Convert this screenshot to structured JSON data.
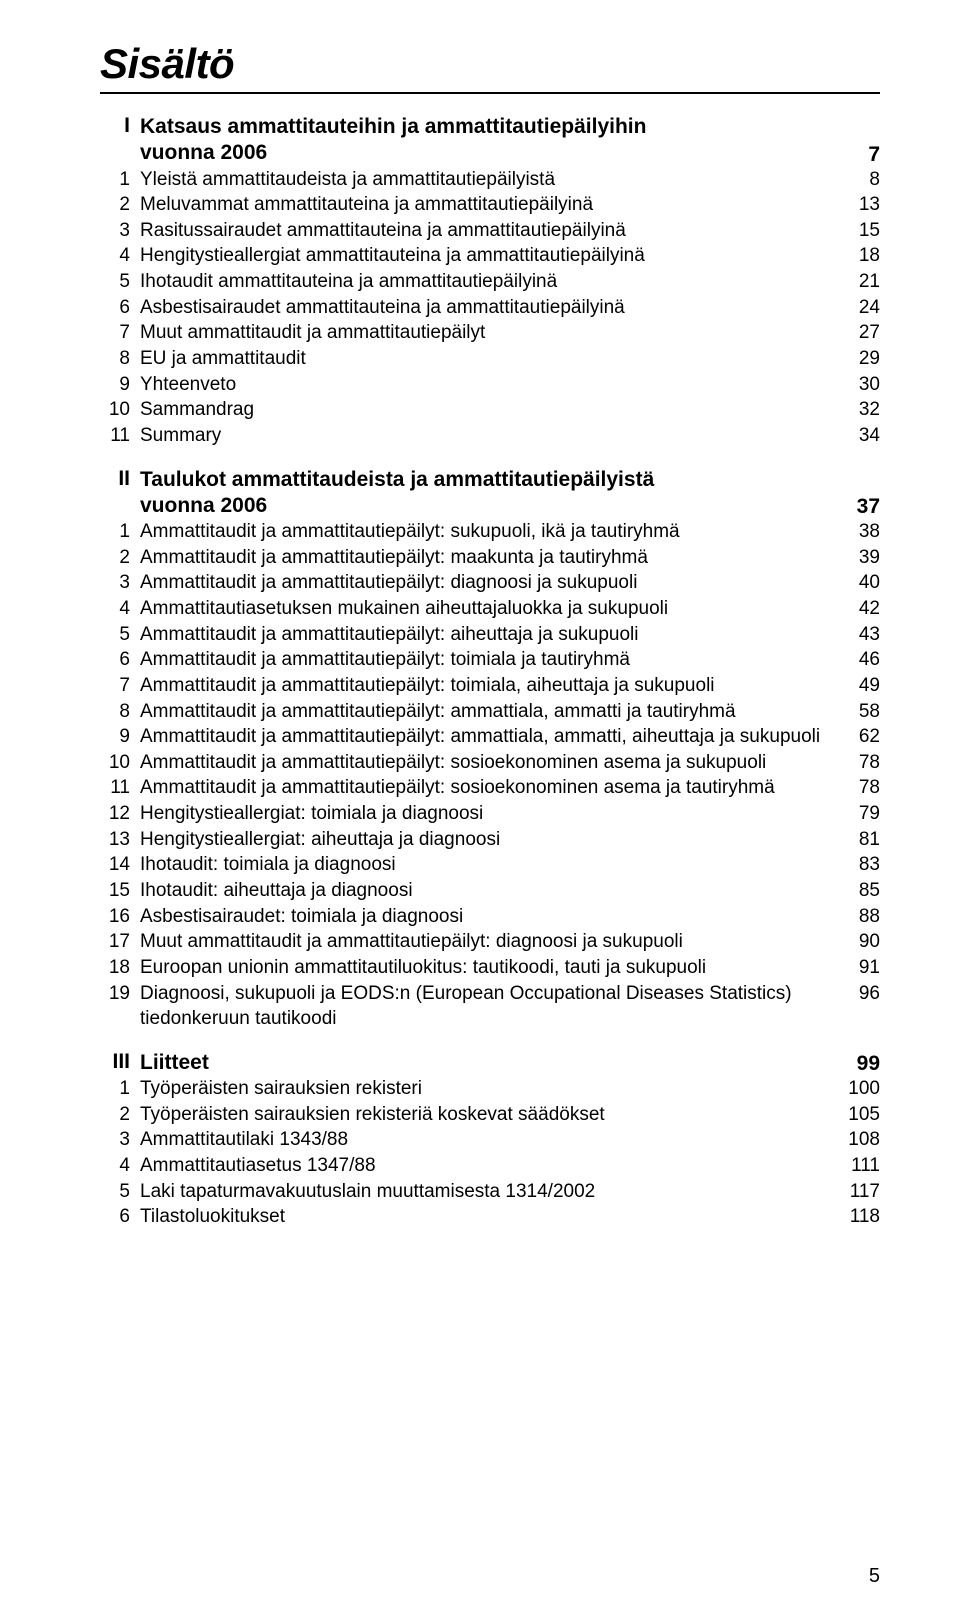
{
  "title": "Sisältö",
  "page_number": "5",
  "sections": [
    {
      "num": "I",
      "heading_lines": [
        "Katsaus ammattitauteihin ja ammattitautiepäilyihin",
        "vuonna 2006"
      ],
      "heading_page": "7",
      "items": [
        {
          "num": "1",
          "text": "Yleistä ammattitaudeista ja ammattitautiepäilyistä",
          "page": "8"
        },
        {
          "num": "2",
          "text": "Meluvammat ammattitauteina ja ammattitautiepäilyinä",
          "page": "13"
        },
        {
          "num": "3",
          "text": "Rasitussairaudet ammattitauteina ja ammattitautiepäilyinä",
          "page": "15"
        },
        {
          "num": "4",
          "text": "Hengitystieallergiat ammattitauteina ja ammattitautiepäilyinä",
          "page": "18"
        },
        {
          "num": "5",
          "text": "Ihotaudit ammattitauteina ja ammattitautiepäilyinä",
          "page": "21"
        },
        {
          "num": "6",
          "text": "Asbestisairaudet ammattitauteina ja ammattitautiepäilyinä",
          "page": "24"
        },
        {
          "num": "7",
          "text": "Muut ammattitaudit ja ammattitautiepäilyt",
          "page": "27"
        },
        {
          "num": "8",
          "text": "EU ja ammattitaudit",
          "page": "29"
        },
        {
          "num": "9",
          "text": "Yhteenveto",
          "page": "30"
        },
        {
          "num": "10",
          "text": "Sammandrag",
          "page": "32"
        },
        {
          "num": "11",
          "text": "Summary",
          "page": "34"
        }
      ]
    },
    {
      "num": "II",
      "heading_lines": [
        "Taulukot ammattitaudeista ja ammattitautiepäilyistä",
        "vuonna 2006"
      ],
      "heading_page": "37",
      "items": [
        {
          "num": "1",
          "text": "Ammattitaudit ja ammattitautiepäilyt: sukupuoli, ikä ja tautiryhmä",
          "page": "38"
        },
        {
          "num": "2",
          "text": "Ammattitaudit ja ammattitautiepäilyt: maakunta ja tautiryhmä",
          "page": "39"
        },
        {
          "num": "3",
          "text": "Ammattitaudit ja ammattitautiepäilyt: diagnoosi ja sukupuoli",
          "page": "40"
        },
        {
          "num": "4",
          "text": "Ammattitautiasetuksen mukainen aiheuttajaluokka ja sukupuoli",
          "page": "42"
        },
        {
          "num": "5",
          "text": "Ammattitaudit ja ammattitautiepäilyt: aiheuttaja ja sukupuoli",
          "page": "43"
        },
        {
          "num": "6",
          "text": "Ammattitaudit ja ammattitautiepäilyt: toimiala ja tautiryhmä",
          "page": "46"
        },
        {
          "num": "7",
          "text": "Ammattitaudit ja ammattitautiepäilyt: toimiala, aiheuttaja ja sukupuoli",
          "page": "49"
        },
        {
          "num": "8",
          "text": "Ammattitaudit ja ammattitautiepäilyt: ammattiala, ammatti ja tautiryhmä",
          "page": "58"
        },
        {
          "num": "9",
          "text": "Ammattitaudit ja ammattitautiepäilyt: ammattiala, ammatti, aiheuttaja ja sukupuoli",
          "page": "62"
        },
        {
          "num": "10",
          "text": "Ammattitaudit ja ammattitautiepäilyt: sosioekonominen asema ja sukupuoli",
          "page": "78"
        },
        {
          "num": "11",
          "text": "Ammattitaudit ja ammattitautiepäilyt: sosioekonominen asema ja tautiryhmä",
          "page": "78"
        },
        {
          "num": "12",
          "text": "Hengitystieallergiat: toimiala ja diagnoosi",
          "page": "79"
        },
        {
          "num": "13",
          "text": "Hengitystieallergiat: aiheuttaja ja diagnoosi",
          "page": "81"
        },
        {
          "num": "14",
          "text": "Ihotaudit: toimiala ja diagnoosi",
          "page": "83"
        },
        {
          "num": "15",
          "text": "Ihotaudit: aiheuttaja ja diagnoosi",
          "page": "85"
        },
        {
          "num": "16",
          "text": "Asbestisairaudet: toimiala ja diagnoosi",
          "page": "88"
        },
        {
          "num": "17",
          "text": "Muut ammattitaudit ja ammattitautiepäilyt: diagnoosi ja sukupuoli",
          "page": "90"
        },
        {
          "num": "18",
          "text": "Euroopan unionin ammattitautiluokitus: tautikoodi, tauti ja sukupuoli",
          "page": "91"
        },
        {
          "num": "19",
          "text": "Diagnoosi, sukupuoli ja EODS:n (European Occupational Diseases Statistics) tiedonkeruun tautikoodi",
          "page": "96"
        }
      ]
    },
    {
      "num": "III",
      "heading_lines": [
        "Liitteet"
      ],
      "heading_page": "99",
      "items": [
        {
          "num": "1",
          "text": "Työperäisten sairauksien rekisteri",
          "page": "100"
        },
        {
          "num": "2",
          "text": "Työperäisten sairauksien rekisteriä koskevat säädökset",
          "page": "105"
        },
        {
          "num": "3",
          "text": "Ammattitautilaki 1343/88",
          "page": "108"
        },
        {
          "num": "4",
          "text": "Ammattitautiasetus 1347/88",
          "page": "111"
        },
        {
          "num": "5",
          "text": "Laki tapaturmavakuutuslain muuttamisesta 1314/2002",
          "page": "117"
        },
        {
          "num": "6",
          "text": "Tilastoluokitukset",
          "page": "118"
        }
      ]
    }
  ]
}
